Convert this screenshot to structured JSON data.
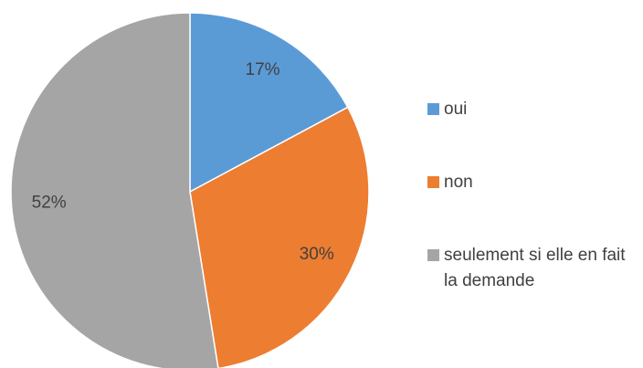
{
  "chart_data": {
    "type": "pie",
    "categories": [
      "oui",
      "non",
      "seulement si elle en fait la demande"
    ],
    "values": [
      17,
      30,
      52
    ],
    "value_labels": [
      "17%",
      "30%",
      "52%"
    ],
    "colors": [
      "#5b9bd5",
      "#ed7d31",
      "#a5a5a5"
    ],
    "legend": "right"
  }
}
